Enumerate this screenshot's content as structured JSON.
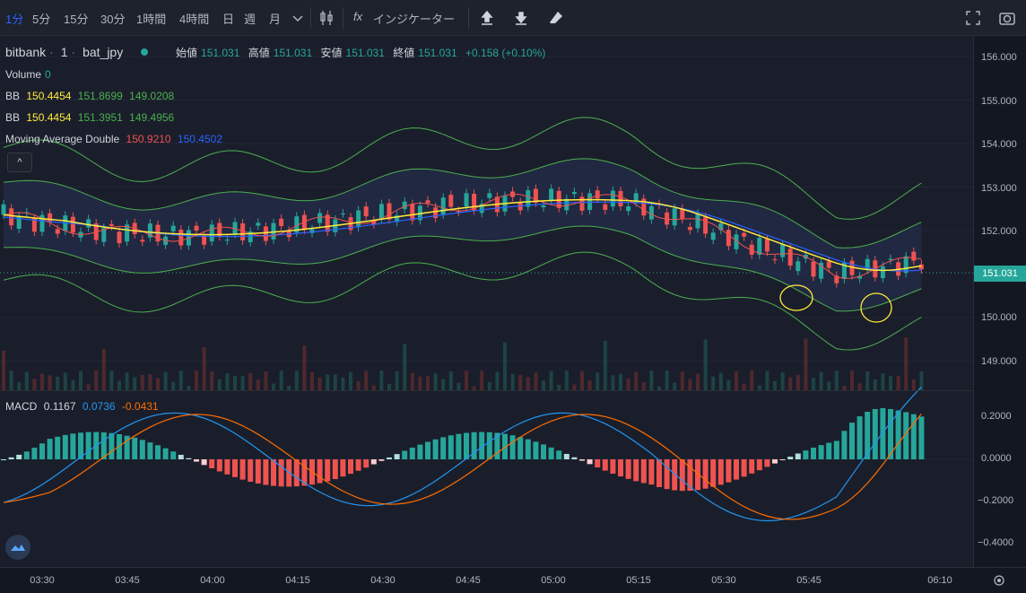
{
  "toolbar": {
    "timeframes": [
      {
        "label": "1分",
        "active": true
      },
      {
        "label": "5分",
        "active": false
      },
      {
        "label": "15分",
        "active": false
      },
      {
        "label": "30分",
        "active": false
      },
      {
        "label": "1時間",
        "active": false
      },
      {
        "label": "4時間",
        "active": false
      },
      {
        "label": "日",
        "active": false
      },
      {
        "label": "週",
        "active": false
      },
      {
        "label": "月",
        "active": false
      }
    ],
    "indicator_icon_text": "fx",
    "indicator_label": "インジケーター",
    "icons": [
      "chevron-down-icon",
      "candlestick-icon",
      "indicator-icon",
      "upload-icon",
      "download-icon",
      "eraser-icon",
      "fullscreen-icon",
      "camera-icon"
    ]
  },
  "legend": {
    "symbol": {
      "exchange": "bitbank",
      "interval": "1",
      "pair": "bat_jpy"
    },
    "ohlc": [
      {
        "label": "始値",
        "value": "151.031"
      },
      {
        "label": "高値",
        "value": "151.031"
      },
      {
        "label": "安値",
        "value": "151.031"
      },
      {
        "label": "終値",
        "value": "151.031"
      }
    ],
    "change": "+0.158 (+0.10%)",
    "volume": {
      "label": "Volume",
      "value": "0"
    },
    "bb1": {
      "label": "BB",
      "v1": "150.4454",
      "v2": "151.8699",
      "v3": "149.0208"
    },
    "bb2": {
      "label": "BB",
      "v1": "150.4454",
      "v2": "151.3951",
      "v3": "149.4956"
    },
    "mad": {
      "label": "Moving Average Double",
      "v1": "150.9210",
      "v2": "150.4502"
    },
    "macd": {
      "label": "MACD",
      "v1": "0.1167",
      "v2": "0.0736",
      "v3": "-0.0431"
    }
  },
  "price_axis": {
    "ticks": [
      "156.000",
      "155.000",
      "154.000",
      "153.000",
      "152.000",
      "151.031",
      "150.000",
      "149.000"
    ],
    "current_price": "151.031",
    "macd_ticks": [
      "0.2000",
      "0.0000",
      "−0.2000",
      "−0.4000"
    ]
  },
  "time_axis": {
    "labels": [
      "03:30",
      "03:45",
      "04:00",
      "04:15",
      "04:30",
      "04:45",
      "05:00",
      "05:15",
      "05:30",
      "05:45",
      "06:10"
    ]
  },
  "colors": {
    "up": "#26a69a",
    "down": "#ef5350",
    "bb_outer": "#4caf50",
    "bb_band_fill": "#232a45",
    "ma_fast": "#ef5350",
    "ma_slow": "#ffeb3b",
    "ma_blue": "#2962ff",
    "macd_line": "#2196f3",
    "signal_line": "#ff6d00",
    "annotation": "#ffeb3b",
    "accent": "#2962ff"
  },
  "chart_data": {
    "type": "line",
    "price_range": [
      148.7,
      156.4
    ],
    "candles_hint": "synthetic candlestick series reconstructed from visual",
    "macd_range": [
      -0.47,
      0.24
    ]
  }
}
